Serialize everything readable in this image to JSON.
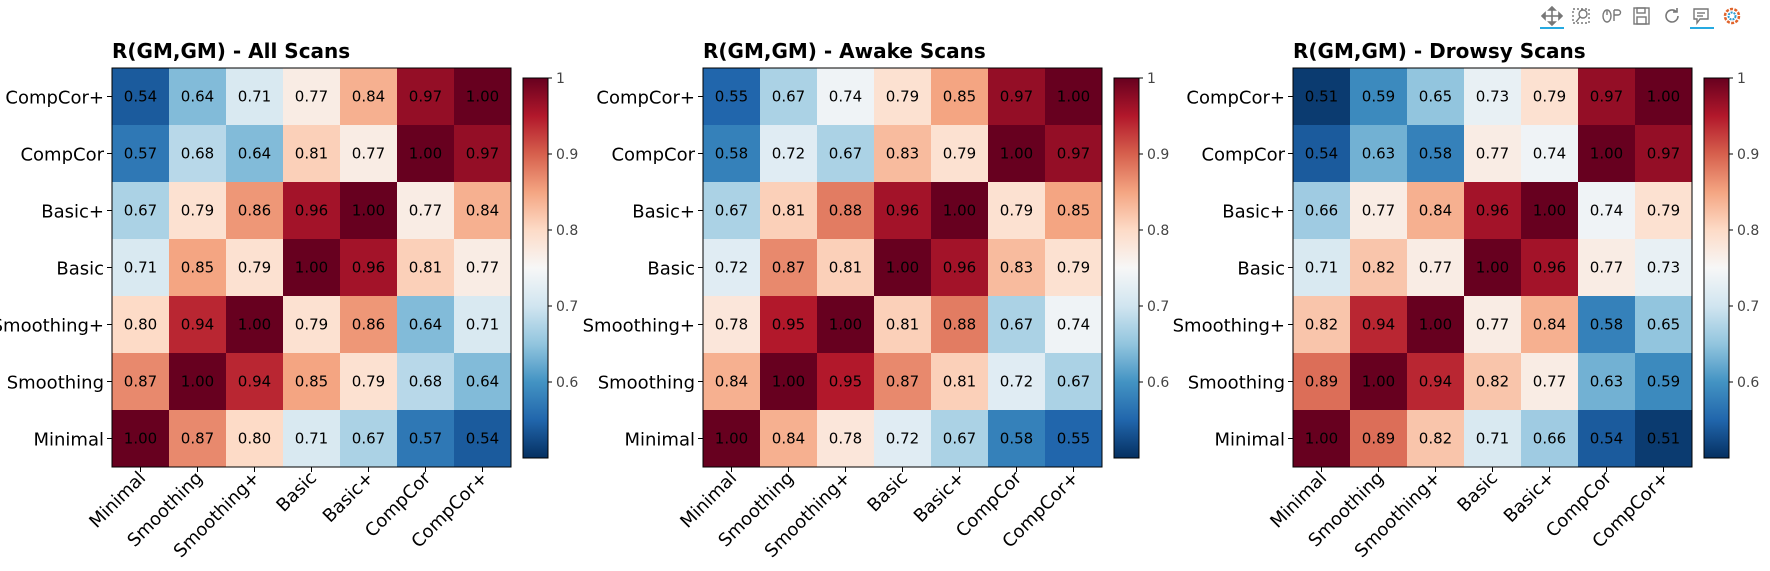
{
  "toolbar": [
    {
      "name": "pan-tool-button",
      "icon": "pan-icon",
      "active": true
    },
    {
      "name": "box-zoom-tool-button",
      "icon": "box-zoom-icon",
      "active": false
    },
    {
      "name": "wheel-zoom-tool-button",
      "icon": "wheel-zoom-icon",
      "active": false
    },
    {
      "name": "save-tool-button",
      "icon": "save-icon",
      "active": false
    },
    {
      "name": "reset-tool-button",
      "icon": "reset-icon",
      "active": false
    },
    {
      "name": "hover-tool-button",
      "icon": "hover-icon",
      "active": true
    },
    {
      "name": "bokeh-logo",
      "icon": "bokeh-logo-icon",
      "active": false
    }
  ],
  "colorscale": {
    "name": "RdBu_r",
    "stops": [
      "#053061",
      "#2166ac",
      "#4393c3",
      "#92c5de",
      "#d1e5f0",
      "#f7f7f7",
      "#fddbc7",
      "#f4a582",
      "#d6604d",
      "#b2182b",
      "#67001f"
    ],
    "vmin": 0.5,
    "vmax": 1.0,
    "colorbar_ticks": [
      0.6,
      0.7,
      0.8,
      0.9,
      1.0
    ],
    "colorbar_tick_labels": [
      "0.6",
      "0.7",
      "0.8",
      "0.9",
      "1"
    ]
  },
  "chart_data": [
    {
      "type": "heatmap",
      "title": "R(GM,GM) - All Scans",
      "x_labels": [
        "Minimal",
        "Smoothing",
        "Smoothing+",
        "Basic",
        "Basic+",
        "CompCor",
        "CompCor+"
      ],
      "y_labels_top_to_bottom": [
        "CompCor+",
        "CompCor",
        "Basic+",
        "Basic",
        "Smoothing+",
        "Smoothing",
        "Minimal"
      ],
      "colorbar_range": [
        0.5,
        1.0
      ],
      "values": [
        [
          0.54,
          0.64,
          0.71,
          0.77,
          0.84,
          0.97,
          1.0
        ],
        [
          0.57,
          0.68,
          0.64,
          0.81,
          0.77,
          1.0,
          0.97
        ],
        [
          0.67,
          0.79,
          0.86,
          0.96,
          1.0,
          0.77,
          0.84
        ],
        [
          0.71,
          0.85,
          0.79,
          1.0,
          0.96,
          0.81,
          0.77
        ],
        [
          0.8,
          0.94,
          1.0,
          0.79,
          0.86,
          0.64,
          0.71
        ],
        [
          0.87,
          1.0,
          0.94,
          0.85,
          0.79,
          0.68,
          0.64
        ],
        [
          1.0,
          0.87,
          0.8,
          0.71,
          0.67,
          0.57,
          0.54
        ]
      ]
    },
    {
      "type": "heatmap",
      "title": "R(GM,GM) - Awake Scans",
      "x_labels": [
        "Minimal",
        "Smoothing",
        "Smoothing+",
        "Basic",
        "Basic+",
        "CompCor",
        "CompCor+"
      ],
      "y_labels_top_to_bottom": [
        "CompCor+",
        "CompCor",
        "Basic+",
        "Basic",
        "Smoothing+",
        "Smoothing",
        "Minimal"
      ],
      "colorbar_range": [
        0.5,
        1.0
      ],
      "values": [
        [
          0.55,
          0.67,
          0.74,
          0.79,
          0.85,
          0.97,
          1.0
        ],
        [
          0.58,
          0.72,
          0.67,
          0.83,
          0.79,
          1.0,
          0.97
        ],
        [
          0.67,
          0.81,
          0.88,
          0.96,
          1.0,
          0.79,
          0.85
        ],
        [
          0.72,
          0.87,
          0.81,
          1.0,
          0.96,
          0.83,
          0.79
        ],
        [
          0.78,
          0.95,
          1.0,
          0.81,
          0.88,
          0.67,
          0.74
        ],
        [
          0.84,
          1.0,
          0.95,
          0.87,
          0.81,
          0.72,
          0.67
        ],
        [
          1.0,
          0.84,
          0.78,
          0.72,
          0.67,
          0.58,
          0.55
        ]
      ]
    },
    {
      "type": "heatmap",
      "title": "R(GM,GM) - Drowsy Scans",
      "x_labels": [
        "Minimal",
        "Smoothing",
        "Smoothing+",
        "Basic",
        "Basic+",
        "CompCor",
        "CompCor+"
      ],
      "y_labels_top_to_bottom": [
        "CompCor+",
        "CompCor",
        "Basic+",
        "Basic",
        "Smoothing+",
        "Smoothing",
        "Minimal"
      ],
      "colorbar_range": [
        0.5,
        1.0
      ],
      "values": [
        [
          0.51,
          0.59,
          0.65,
          0.73,
          0.79,
          0.97,
          1.0
        ],
        [
          0.54,
          0.63,
          0.58,
          0.77,
          0.74,
          1.0,
          0.97
        ],
        [
          0.66,
          0.77,
          0.84,
          0.96,
          1.0,
          0.74,
          0.79
        ],
        [
          0.71,
          0.82,
          0.77,
          1.0,
          0.96,
          0.77,
          0.73
        ],
        [
          0.82,
          0.94,
          1.0,
          0.77,
          0.84,
          0.58,
          0.65
        ],
        [
          0.89,
          1.0,
          0.94,
          0.82,
          0.77,
          0.63,
          0.59
        ],
        [
          1.0,
          0.89,
          0.82,
          0.71,
          0.66,
          0.54,
          0.51
        ]
      ]
    }
  ]
}
